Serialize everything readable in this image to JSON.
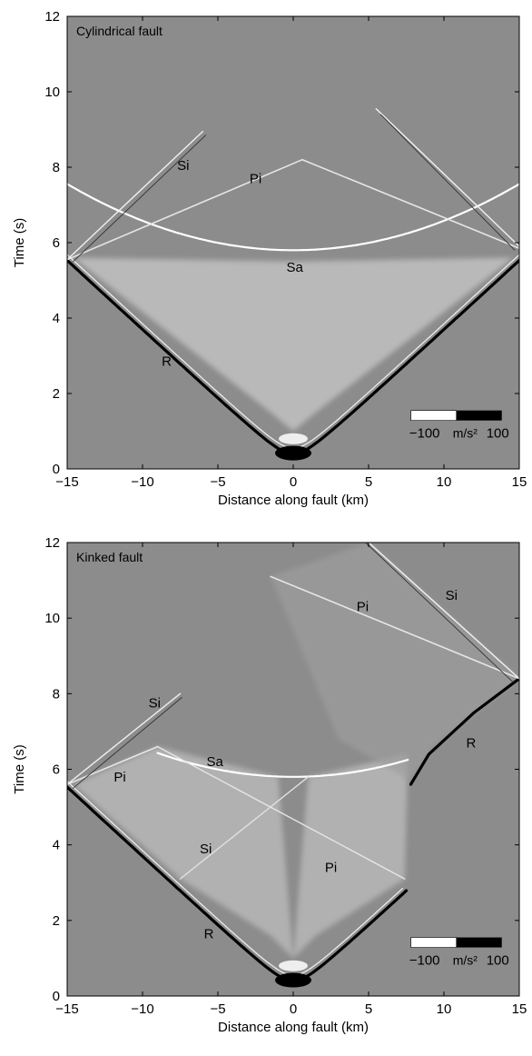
{
  "colors": {
    "background": "#8c8c8c",
    "bright_phase": "#f2f2f2",
    "dark_phase": "#000000",
    "axis": "#000000"
  },
  "chart_data": [
    {
      "type": "heatmap",
      "title": "Cylindrical fault",
      "xlabel": "Distance along fault (km)",
      "ylabel": "Time (s)",
      "xlim": [
        -15,
        15
      ],
      "ylim": [
        0,
        12
      ],
      "xticks": [
        -15,
        -10,
        -5,
        0,
        5,
        10,
        15
      ],
      "yticks": [
        0,
        2,
        4,
        6,
        8,
        10,
        12
      ],
      "colorbar": {
        "min_label": "−100",
        "unit": "m/s²",
        "max_label": "100",
        "range": [
          -100,
          100
        ]
      },
      "phase_labels": [
        {
          "text": "Si",
          "x": -7.3,
          "y": 8.05
        },
        {
          "text": "Pi",
          "x": -2.5,
          "y": 7.7
        },
        {
          "text": "Sa",
          "x": 0.1,
          "y": 5.35
        },
        {
          "text": "R",
          "x": -8.4,
          "y": 2.85
        }
      ]
    },
    {
      "type": "heatmap",
      "title": "Kinked fault",
      "xlabel": "Distance along fault (km)",
      "ylabel": "Time (s)",
      "xlim": [
        -15,
        15
      ],
      "ylim": [
        0,
        12
      ],
      "xticks": [
        -15,
        -10,
        -5,
        0,
        5,
        10,
        15
      ],
      "yticks": [
        0,
        2,
        4,
        6,
        8,
        10,
        12
      ],
      "colorbar": {
        "min_label": "−100",
        "unit": "m/s²",
        "max_label": "100",
        "range": [
          -100,
          100
        ]
      },
      "phase_labels": [
        {
          "text": "Si",
          "x": 10.5,
          "y": 10.6
        },
        {
          "text": "Pi",
          "x": 4.6,
          "y": 10.3
        },
        {
          "text": "Si",
          "x": -9.2,
          "y": 7.75
        },
        {
          "text": "Sa",
          "x": -5.2,
          "y": 6.2
        },
        {
          "text": "Pi",
          "x": -11.5,
          "y": 5.8
        },
        {
          "text": "R",
          "x": 11.8,
          "y": 6.7
        },
        {
          "text": "Si",
          "x": -5.8,
          "y": 3.9
        },
        {
          "text": "Pi",
          "x": 2.5,
          "y": 3.4
        },
        {
          "text": "R",
          "x": -5.6,
          "y": 1.65
        }
      ]
    }
  ]
}
